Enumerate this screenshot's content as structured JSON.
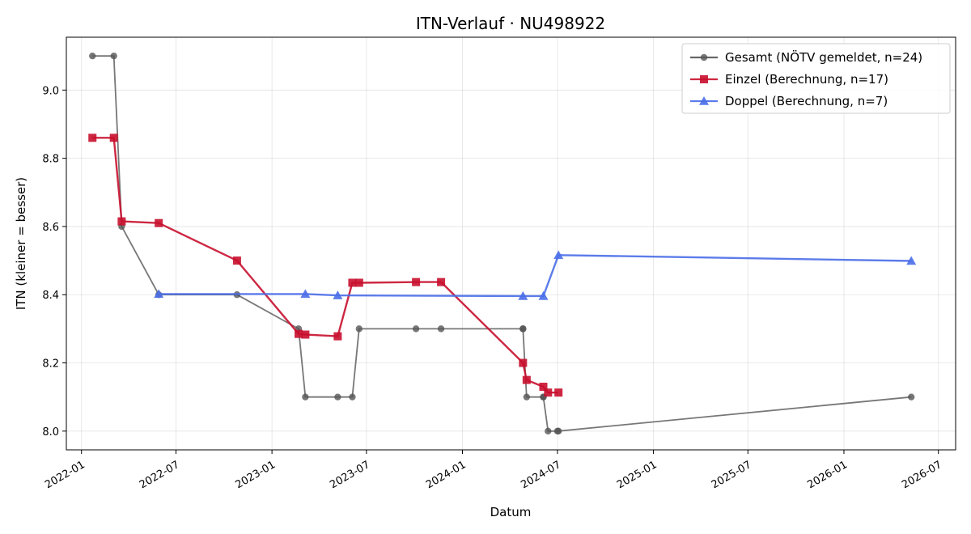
{
  "chart_data": {
    "type": "line",
    "title": "ITN-Verlauf · NU498922",
    "xlabel": "Datum",
    "ylabel": "ITN  (kleiner = besser)",
    "x_type": "date",
    "xlim": [
      "2021-12-03",
      "2026-08-03"
    ],
    "ylim": [
      7.945,
      9.155
    ],
    "x_ticks": [
      "2022-01-01",
      "2022-07-01",
      "2023-01-01",
      "2023-07-01",
      "2024-01-01",
      "2024-07-01",
      "2025-01-01",
      "2025-07-01",
      "2026-01-01",
      "2026-07-01"
    ],
    "x_tick_labels": [
      "2022-01",
      "2022-07",
      "2023-01",
      "2023-07",
      "2024-01",
      "2024-07",
      "2025-01",
      "2025-07",
      "2026-01",
      "2026-07"
    ],
    "y_ticks": [
      8.0,
      8.2,
      8.4,
      8.6,
      8.8,
      9.0
    ],
    "y_tick_labels": [
      "8.0",
      "8.2",
      "8.4",
      "8.6",
      "8.8",
      "9.0"
    ],
    "grid": true,
    "legend_position": "top-right",
    "series": [
      {
        "name": "Gesamt (NÖTV gemeldet, n=24)",
        "color": "#555555",
        "marker": "circle",
        "x": [
          "2022-01-22",
          "2022-03-04",
          "2022-03-19",
          "2022-05-29",
          "2022-10-26",
          "2023-02-21",
          "2023-03-06",
          "2023-05-07",
          "2023-06-04",
          "2023-06-17",
          "2023-10-04",
          "2023-11-21",
          "2024-04-26",
          "2024-04-26",
          "2024-05-03",
          "2024-06-04",
          "2024-06-04",
          "2024-06-13",
          "2024-07-01",
          "2024-07-03",
          "2026-05-10"
        ],
        "y": [
          9.1,
          9.1,
          8.6,
          8.4,
          8.4,
          8.3,
          8.1,
          8.1,
          8.1,
          8.3,
          8.3,
          8.3,
          8.3,
          8.3,
          8.1,
          8.1,
          8.1,
          8.0,
          8.0,
          8.0,
          8.1
        ]
      },
      {
        "name": "Einzel (Berechnung, n=17)",
        "color": "#c8102e",
        "marker": "square",
        "x": [
          "2022-01-22",
          "2022-03-04",
          "2022-03-19",
          "2022-05-29",
          "2022-10-26",
          "2023-02-21",
          "2023-03-06",
          "2023-05-07",
          "2023-06-04",
          "2023-06-17",
          "2023-10-04",
          "2023-11-21",
          "2024-04-26",
          "2024-05-03",
          "2024-06-04",
          "2024-06-13",
          "2024-07-03"
        ],
        "y": [
          8.86,
          8.86,
          8.615,
          8.61,
          8.5,
          8.285,
          8.283,
          8.278,
          8.435,
          8.435,
          8.437,
          8.437,
          8.2,
          8.15,
          8.13,
          8.113,
          8.113
        ]
      },
      {
        "name": "Doppel (Berechnung, n=7)",
        "color": "#4a6ee8",
        "marker": "triangle",
        "x": [
          "2022-05-29",
          "2023-03-06",
          "2023-05-07",
          "2024-04-26",
          "2024-06-04",
          "2024-07-03",
          "2026-05-10"
        ],
        "y": [
          8.402,
          8.402,
          8.398,
          8.396,
          8.396,
          8.516,
          8.499
        ]
      }
    ]
  }
}
